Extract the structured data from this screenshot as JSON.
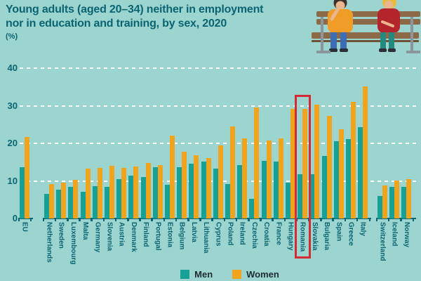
{
  "title": {
    "line1": "Young adults (aged 20–34) neither in employment",
    "line2": "nor in education and training, by sex, 2020",
    "unit": "(%)"
  },
  "legend": {
    "men": "Men",
    "women": "Women"
  },
  "colors": {
    "background": "#9cd4cf",
    "ink": "#0b6472",
    "men": "#16a096",
    "women": "#f0a41e",
    "highlight": "#d42a33",
    "gridline": "#ffffff",
    "bench_wood": "#8d6a47",
    "bench_wood_dark": "#6f5136",
    "bench_metal": "#8b959c",
    "skin": "#eab68f",
    "man_shirt": "#f09d28",
    "man_jeans": "#3d6eb4",
    "man_hair": "#3f3129",
    "woman_shirt": "#b3242d",
    "woman_hair": "#e7bc3f",
    "woman_pants": "#26897f",
    "shoes": "#2e2e38"
  },
  "y_axis": {
    "ticks": [
      0,
      10,
      20,
      30,
      40
    ],
    "max": 40
  },
  "highlight_country": "Romania",
  "chart_data": {
    "type": "bar",
    "title": "Young adults (aged 20–34) neither in employment nor in education and training, by sex, 2020",
    "unit": "%",
    "ylim": [
      0,
      40
    ],
    "yticks": [
      0,
      10,
      20,
      30,
      40
    ],
    "grid": "horizontal-dashed-white",
    "legend_position": "bottom-center",
    "highlighted_category": "Romania",
    "categories": [
      "EU",
      "Netherlands",
      "Sweden",
      "Luxembourg",
      "Malta",
      "Germany",
      "Slovenia",
      "Austria",
      "Denmark",
      "Finland",
      "Portugal",
      "Estonia",
      "Belgium",
      "Latvia",
      "Lithuania",
      "Cyprus",
      "Poland",
      "Ireland",
      "Czechia",
      "Croatia",
      "France",
      "Hungary",
      "Romania",
      "Slovakia",
      "Bulgaria",
      "Spain",
      "Greece",
      "Italy",
      "Switzerland",
      "Iceland",
      "Norway"
    ],
    "series": [
      {
        "name": "Men",
        "values": [
          13.6,
          6.6,
          7.6,
          8.5,
          7.1,
          8.6,
          8.4,
          10.5,
          11.4,
          11.0,
          13.6,
          9.0,
          13.6,
          14.6,
          15.1,
          13.3,
          9.2,
          14.2,
          5.3,
          15.3,
          15.2,
          9.6,
          11.7,
          11.7,
          16.7,
          20.6,
          21.2,
          24.3,
          6.0,
          8.5,
          8.4
        ]
      },
      {
        "name": "Women",
        "values": [
          21.7,
          9.1,
          9.6,
          10.2,
          13.3,
          13.4,
          14.0,
          13.5,
          13.8,
          14.8,
          14.2,
          22.0,
          17.7,
          16.9,
          16.1,
          19.4,
          24.4,
          21.3,
          29.5,
          20.7,
          21.4,
          29.2,
          29.2,
          30.2,
          27.3,
          23.8,
          31.0,
          35.2,
          8.7,
          10.1,
          10.5
        ]
      }
    ],
    "layout_groups": {
      "aggregate_first": "EU",
      "separated_at_end": [
        "Switzerland",
        "Iceland",
        "Norway"
      ]
    }
  }
}
